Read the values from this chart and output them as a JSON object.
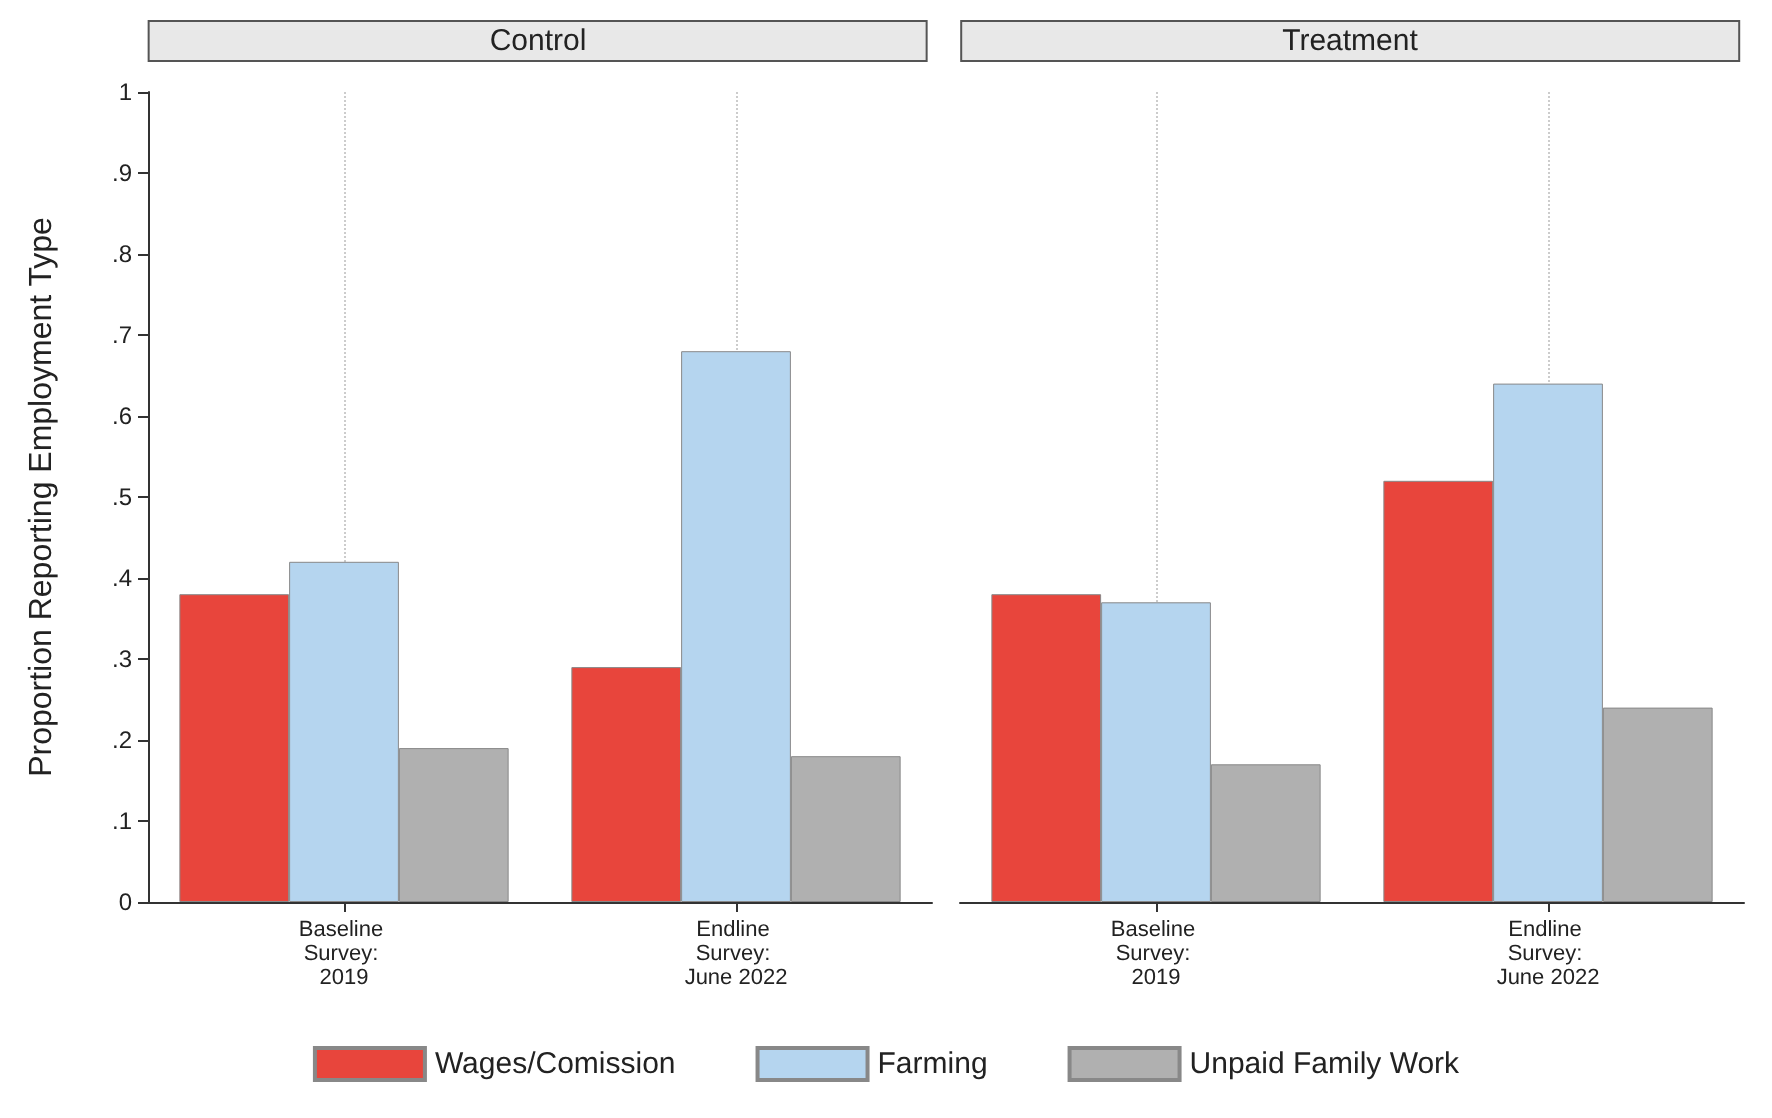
{
  "chart_data": [
    {
      "type": "bar",
      "title": "Control",
      "ylabel": "Proportion Reporting Employment Type",
      "categories": [
        "Baseline Survey: 2019",
        "Endline Survey: June 2022"
      ],
      "series": [
        {
          "name": "Wages/Comission",
          "color": "#e8453c",
          "values": [
            0.38,
            0.29
          ]
        },
        {
          "name": "Farming",
          "color": "#b5d5ef",
          "values": [
            0.42,
            0.68
          ]
        },
        {
          "name": "Unpaid Family Work",
          "color": "#b0b0b0",
          "values": [
            0.19,
            0.18
          ]
        }
      ],
      "ylim": [
        0,
        1
      ],
      "yticks": [
        0,
        {
          "value": 0.1,
          "label": ".1"
        },
        {
          "value": 0.2,
          "label": ".2"
        },
        {
          "value": 0.3,
          "label": ".3"
        },
        {
          "value": 0.4,
          "label": ".4"
        },
        {
          "value": 0.5,
          "label": ".5"
        },
        {
          "value": 0.6,
          "label": ".6"
        },
        {
          "value": 0.7,
          "label": ".7"
        },
        {
          "value": 0.8,
          "label": ".8"
        },
        {
          "value": 0.9,
          "label": ".9"
        },
        1
      ],
      "grid": "x",
      "legend": "bottom"
    },
    {
      "type": "bar",
      "title": "Treatment",
      "categories": [
        "Baseline Survey: 2019",
        "Endline Survey: June 2022"
      ],
      "series": [
        {
          "name": "Wages/Comission",
          "color": "#e8453c",
          "values": [
            0.38,
            0.52
          ]
        },
        {
          "name": "Farming",
          "color": "#b5d5ef",
          "values": [
            0.37,
            0.64
          ]
        },
        {
          "name": "Unpaid Family Work",
          "color": "#b0b0b0",
          "values": [
            0.17,
            0.24
          ]
        }
      ],
      "ylim": [
        0,
        1
      ],
      "tick_labels": "x",
      "grid": "x",
      "legend": "bottom"
    }
  ]
}
